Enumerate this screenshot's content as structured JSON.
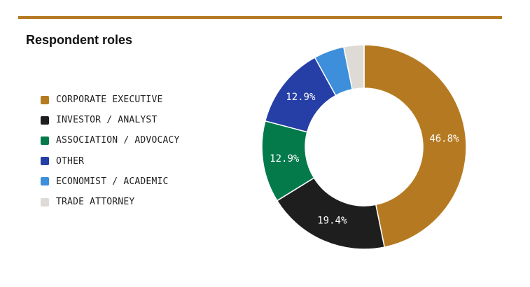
{
  "colors": {
    "rule": "#b57a21",
    "label_light": "#ffffff"
  },
  "chart_data": {
    "type": "pie",
    "title": "Respondent roles",
    "donut": true,
    "legend_position": "left",
    "categories": [
      "CORPORATE EXECUTIVE",
      "INVESTOR / ANALYST",
      "ASSOCIATION / ADVOCACY",
      "OTHER",
      "ECONOMIST / ACADEMIC",
      "TRADE ATTORNEY"
    ],
    "values": [
      46.8,
      19.4,
      12.9,
      12.9,
      4.8,
      3.2
    ],
    "value_labels": [
      "46.8%",
      "19.4%",
      "12.9%",
      "12.9%",
      "",
      ""
    ],
    "colors": [
      "#b57a21",
      "#1e1e1e",
      "#047a4b",
      "#263fa6",
      "#3d8fdb",
      "#dedbd6"
    ]
  }
}
